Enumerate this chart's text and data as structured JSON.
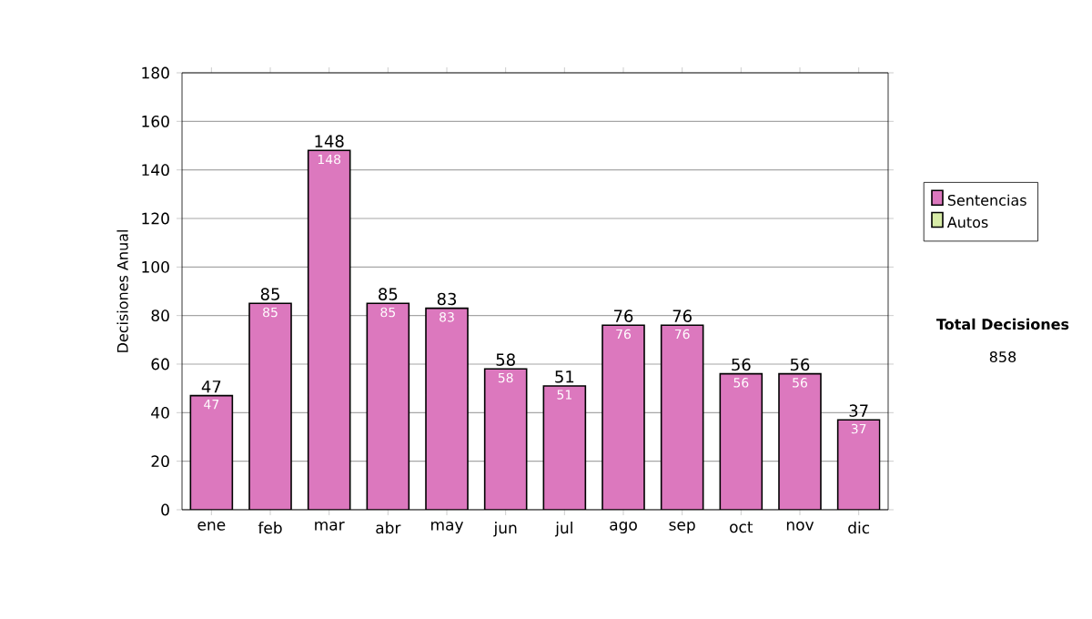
{
  "chart_data": {
    "type": "bar",
    "stacked": true,
    "ylabel": "Decisiones Anual",
    "categories": [
      "ene",
      "feb",
      "mar",
      "abr",
      "may",
      "jun",
      "jul",
      "ago",
      "sep",
      "oct",
      "nov",
      "dic"
    ],
    "series": [
      {
        "name": "Sentencias",
        "color": "#dc78be",
        "values": [
          47,
          85,
          148,
          85,
          83,
          58,
          51,
          76,
          76,
          56,
          56,
          37
        ],
        "value_labels": [
          "47",
          "85",
          "148",
          "85",
          "83",
          "58",
          "51",
          "76",
          "76",
          "56",
          "56",
          "37"
        ]
      },
      {
        "name": "Autos",
        "color": "#d8eca8",
        "values": [
          0,
          0,
          0,
          0,
          0,
          0,
          0,
          0,
          0,
          0,
          0,
          0
        ]
      }
    ],
    "totals": [
      "47",
      "85",
      "148",
      "85",
      "83",
      "58",
      "51",
      "76",
      "76",
      "56",
      "56",
      "37"
    ],
    "ylim": [
      0,
      180
    ],
    "yticks": [
      0,
      20,
      40,
      60,
      80,
      100,
      120,
      140,
      160,
      180
    ],
    "grid": "y",
    "legend": "right",
    "annotations": [
      "Total Decisiones",
      "858"
    ]
  }
}
